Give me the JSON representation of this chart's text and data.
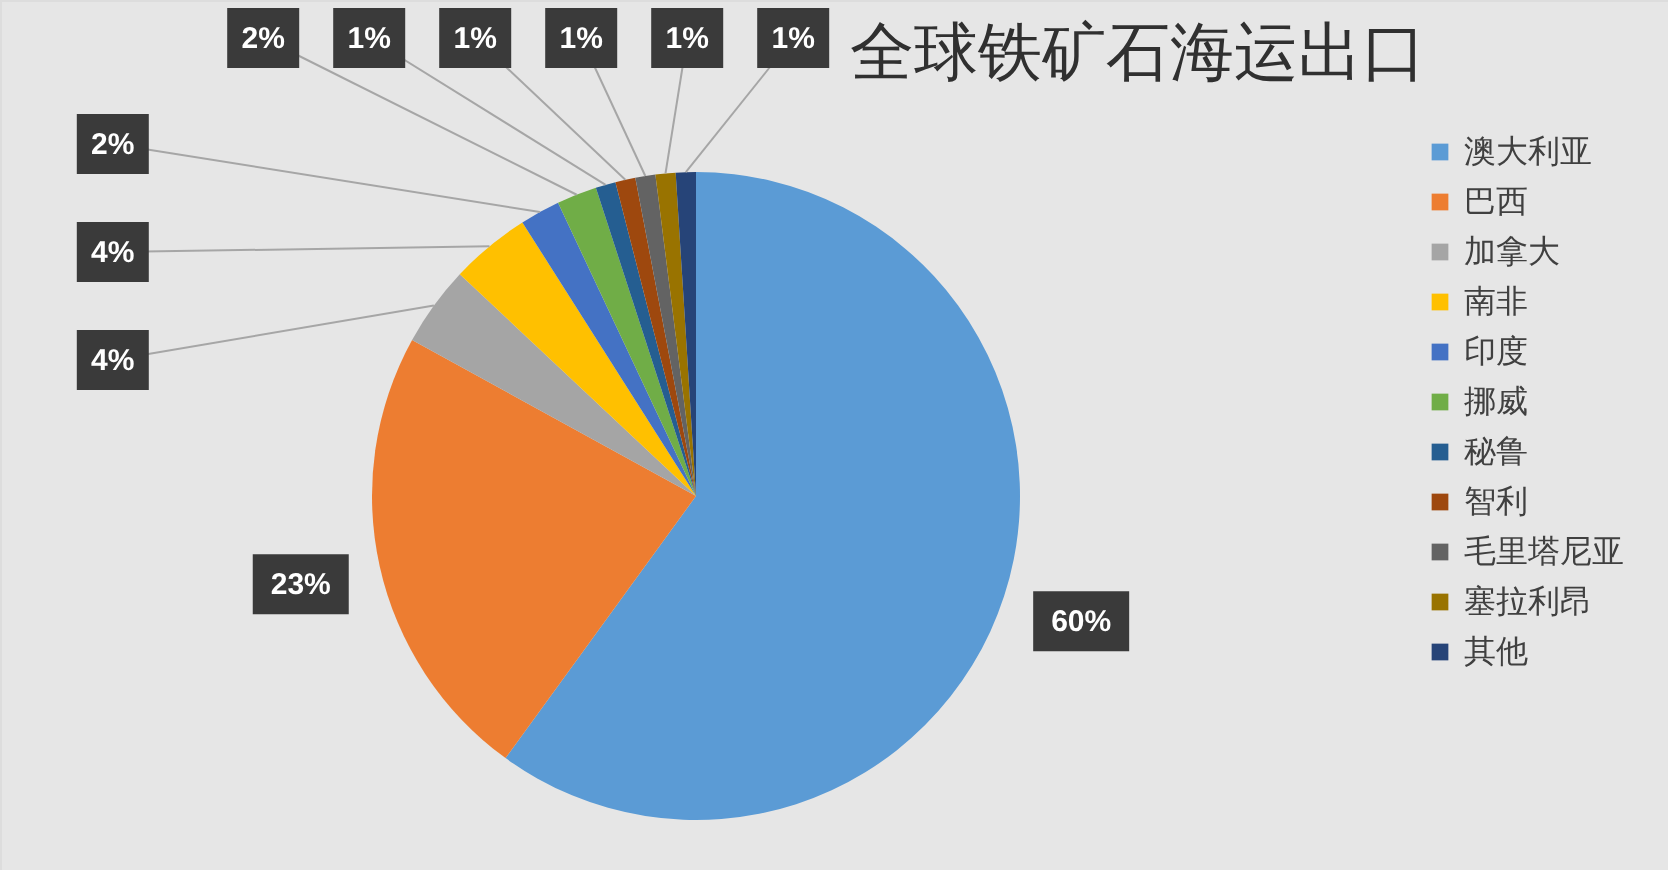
{
  "chart_data": {
    "type": "pie",
    "title": "全球铁矿石海运出口",
    "categories": [
      "澳大利亚",
      "巴西",
      "加拿大",
      "南非",
      "印度",
      "挪威",
      "秘鲁",
      "智利",
      "毛里塔尼亚",
      "塞拉利昂",
      "其他"
    ],
    "values": [
      60,
      23,
      4,
      4,
      2,
      2,
      1,
      1,
      1,
      1,
      1
    ],
    "colors": [
      "#5b9bd5",
      "#ed7d31",
      "#a5a5a5",
      "#ffc000",
      "#4472c4",
      "#70ad47",
      "#255e91",
      "#9e480e",
      "#636363",
      "#997300",
      "#264478"
    ],
    "value_labels": [
      "60%",
      "23%",
      "4%",
      "4%",
      "2%",
      "2%",
      "1%",
      "1%",
      "1%",
      "1%",
      "1%"
    ],
    "legend": "right"
  }
}
